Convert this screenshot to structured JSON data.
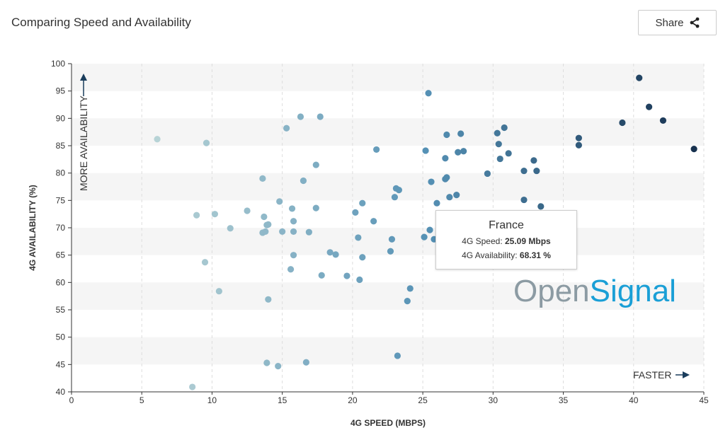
{
  "header": {
    "title": "Comparing Speed and Availability",
    "share_label": "Share"
  },
  "icons": {
    "share": "share-icon"
  },
  "tooltip": {
    "country": "France",
    "speed_label": "4G Speed: ",
    "speed_value": "25.09 Mbps",
    "availability_label": "4G Availability: ",
    "availability_value": "68.31 %"
  },
  "watermark": {
    "part1": "Open",
    "part2": "Signal"
  },
  "chart_data": {
    "type": "scatter",
    "xlabel": "4G SPEED (MBPS)",
    "ylabel": "4G AVAILABILITY (%)",
    "xlim": [
      0,
      45
    ],
    "ylim": [
      40,
      100
    ],
    "x_ticks": [
      0,
      5,
      10,
      15,
      20,
      25,
      30,
      35,
      40,
      45
    ],
    "y_ticks": [
      40,
      45,
      50,
      55,
      60,
      65,
      70,
      75,
      80,
      85,
      90,
      95,
      100
    ],
    "annotations": {
      "y_axis_hint": "MORE AVAILABILITY",
      "x_axis_hint": "FASTER"
    },
    "colors": {
      "low": "#b8d3d6",
      "mid": "#5591b5",
      "high": "#16304e",
      "band": "#f5f5f5",
      "axis": "#333333",
      "grid": "#dddddd"
    },
    "points": [
      [
        6.1,
        86.2
      ],
      [
        9.6,
        85.5
      ],
      [
        8.9,
        72.3
      ],
      [
        10.2,
        72.5
      ],
      [
        9.5,
        63.7
      ],
      [
        10.5,
        58.4
      ],
      [
        8.6,
        40.9
      ],
      [
        11.3,
        69.9
      ],
      [
        12.5,
        73.1
      ],
      [
        13.6,
        79.0
      ],
      [
        13.6,
        69.1
      ],
      [
        13.7,
        72.0
      ],
      [
        13.8,
        69.3
      ],
      [
        13.9,
        70.5
      ],
      [
        14.0,
        70.6
      ],
      [
        14.0,
        56.9
      ],
      [
        13.9,
        45.3
      ],
      [
        14.8,
        74.8
      ],
      [
        15.0,
        69.3
      ],
      [
        14.7,
        44.7
      ],
      [
        15.3,
        88.2
      ],
      [
        15.6,
        62.4
      ],
      [
        15.7,
        73.5
      ],
      [
        15.8,
        71.2
      ],
      [
        15.8,
        69.3
      ],
      [
        15.8,
        65.0
      ],
      [
        16.3,
        90.3
      ],
      [
        16.5,
        78.6
      ],
      [
        16.7,
        45.4
      ],
      [
        16.9,
        69.2
      ],
      [
        17.4,
        81.5
      ],
      [
        17.4,
        73.6
      ],
      [
        17.7,
        90.3
      ],
      [
        17.8,
        61.3
      ],
      [
        18.4,
        65.5
      ],
      [
        18.8,
        65.1
      ],
      [
        19.6,
        61.2
      ],
      [
        20.2,
        72.8
      ],
      [
        20.4,
        68.2
      ],
      [
        20.5,
        60.5
      ],
      [
        20.7,
        74.5
      ],
      [
        20.7,
        64.6
      ],
      [
        21.5,
        71.2
      ],
      [
        21.7,
        84.3
      ],
      [
        22.7,
        65.7
      ],
      [
        22.8,
        67.9
      ],
      [
        23.0,
        75.6
      ],
      [
        23.1,
        77.2
      ],
      [
        23.3,
        76.9
      ],
      [
        23.2,
        46.6
      ],
      [
        23.9,
        56.6
      ],
      [
        24.1,
        58.9
      ],
      [
        25.1,
        68.3
      ],
      [
        25.2,
        84.1
      ],
      [
        25.4,
        94.6
      ],
      [
        25.5,
        69.6
      ],
      [
        25.6,
        78.4
      ],
      [
        25.8,
        67.9
      ],
      [
        26.0,
        74.5
      ],
      [
        26.6,
        78.9
      ],
      [
        26.6,
        82.7
      ],
      [
        26.7,
        87.0
      ],
      [
        26.7,
        79.2
      ],
      [
        26.9,
        75.6
      ],
      [
        27.4,
        76.0
      ],
      [
        27.5,
        83.8
      ],
      [
        27.7,
        87.2
      ],
      [
        27.9,
        84.0
      ],
      [
        29.6,
        79.9
      ],
      [
        30.3,
        87.3
      ],
      [
        30.4,
        85.3
      ],
      [
        30.5,
        82.6
      ],
      [
        30.8,
        88.3
      ],
      [
        31.1,
        83.6
      ],
      [
        32.2,
        80.4
      ],
      [
        32.2,
        75.1
      ],
      [
        32.9,
        82.3
      ],
      [
        33.1,
        80.4
      ],
      [
        33.4,
        73.9
      ],
      [
        36.1,
        86.4
      ],
      [
        36.1,
        85.1
      ],
      [
        39.2,
        89.2
      ],
      [
        40.4,
        97.4
      ],
      [
        41.1,
        92.1
      ],
      [
        42.1,
        89.6
      ],
      [
        44.3,
        84.4
      ]
    ]
  }
}
